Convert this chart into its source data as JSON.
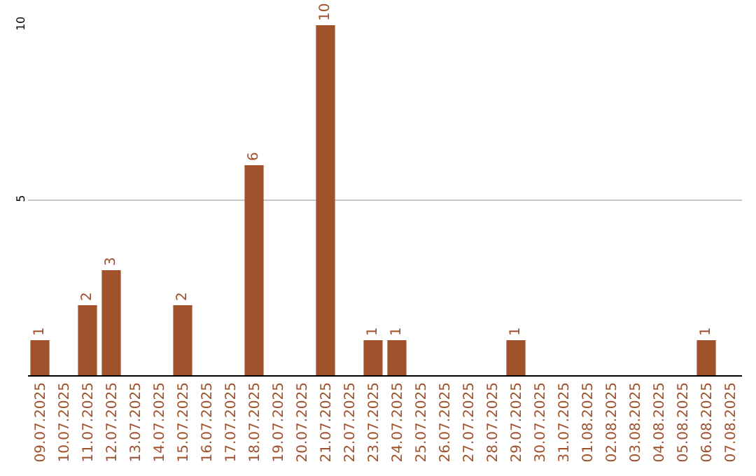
{
  "chart_data": {
    "type": "bar",
    "categories": [
      "09.07.2025",
      "10.07.2025",
      "11.07.2025",
      "12.07.2025",
      "13.07.2025",
      "14.07.2025",
      "15.07.2025",
      "16.07.2025",
      "17.07.2025",
      "18.07.2025",
      "19.07.2025",
      "20.07.2025",
      "21.07.2025",
      "22.07.2025",
      "23.07.2025",
      "24.07.2025",
      "25.07.2025",
      "26.07.2025",
      "27.07.2025",
      "28.07.2025",
      "29.07.2025",
      "30.07.2025",
      "31.07.2025",
      "01.08.2025",
      "02.08.2025",
      "03.08.2025",
      "04.08.2025",
      "05.08.2025",
      "06.08.2025",
      "07.08.2025"
    ],
    "values": [
      1,
      0,
      2,
      3,
      0,
      0,
      2,
      0,
      0,
      6,
      0,
      0,
      10,
      0,
      1,
      1,
      0,
      0,
      0,
      0,
      1,
      0,
      0,
      0,
      0,
      0,
      0,
      0,
      1,
      0
    ],
    "value_labels": [
      "1",
      null,
      "2",
      "3",
      null,
      null,
      "2",
      null,
      null,
      "6",
      null,
      null,
      "10",
      null,
      "1",
      "1",
      null,
      null,
      null,
      null,
      "1",
      null,
      null,
      null,
      null,
      null,
      null,
      null,
      "1",
      null
    ],
    "color": "#a0522d",
    "ylim": [
      0,
      10
    ],
    "yticks": [
      5,
      10
    ],
    "grid": "y"
  }
}
